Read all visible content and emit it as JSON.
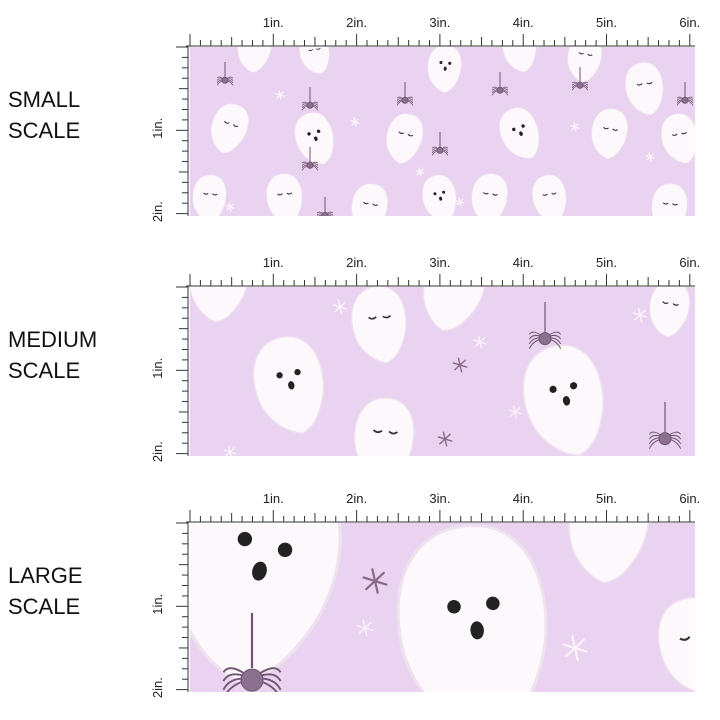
{
  "panels": [
    {
      "label_lines": [
        "SMALL",
        "SCALE"
      ],
      "ruler_top": [
        "1in.",
        "2in.",
        "3in.",
        "4in.",
        "5in.",
        "6in."
      ],
      "ruler_side": [
        "1in.",
        "2in."
      ]
    },
    {
      "label_lines": [
        "MEDIUM",
        "SCALE"
      ],
      "ruler_top": [
        "1in.",
        "2in.",
        "3in.",
        "4in.",
        "5in.",
        "6in."
      ],
      "ruler_side": [
        "1in.",
        "2in."
      ]
    },
    {
      "label_lines": [
        "LARGE",
        "SCALE"
      ],
      "ruler_top": [
        "1in.",
        "2in.",
        "3in.",
        "4in.",
        "5in.",
        "6in."
      ],
      "ruler_side": [
        "1in.",
        "2in."
      ]
    }
  ]
}
